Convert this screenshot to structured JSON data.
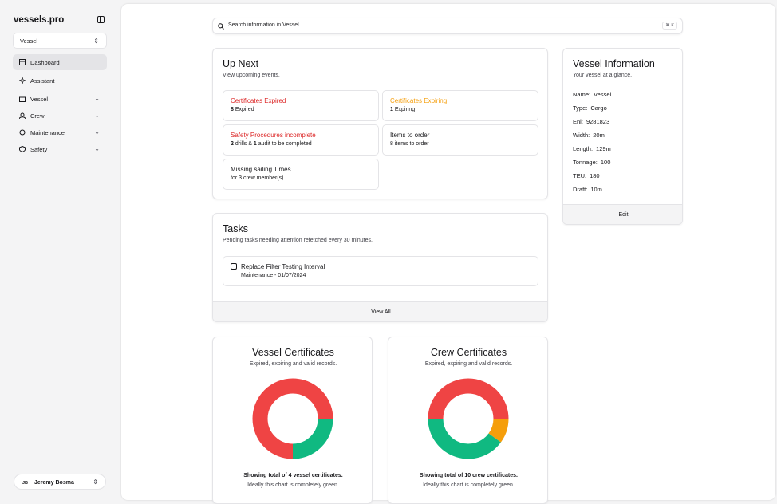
{
  "sidebar": {
    "brand": "vessels.pro",
    "selector": "Vessel",
    "nav": [
      "Dashboard",
      "Assistant",
      "Vessel",
      "Crew",
      "Maintenance",
      "Safety"
    ],
    "user": {
      "initials": "JB",
      "name": "Jeremy Bosma"
    }
  },
  "search": {
    "placeholder": "Search information in Vessel...",
    "shortcut": "⌘ K"
  },
  "up_next": {
    "title": "Up Next",
    "subtitle": "View upcoming events.",
    "items": [
      {
        "title": "Certificates Expired",
        "color": "#dc2626",
        "detail": [
          "8",
          "Expired"
        ]
      },
      {
        "title": "Certificates Expiring",
        "color": "#f59e0b",
        "detail": [
          "1",
          "Expiring"
        ]
      },
      {
        "title": "Safety Procedures incomplete",
        "color": "#dc2626",
        "detail": [
          "2",
          "drills &",
          "1",
          "audit to be completed"
        ]
      },
      {
        "title": "Items to order",
        "color": "#18181b",
        "detail": [
          "8 items to order"
        ]
      },
      {
        "title": "Missing sailing Times",
        "color": "#18181b",
        "detail": [
          "for 3 crew member(s)"
        ]
      }
    ]
  },
  "tasks": {
    "title": "Tasks",
    "subtitle": "Pending tasks needing attention refetched every 30 minutes.",
    "items": [
      {
        "title": "Replace Filter Testing Interval",
        "meta": "Maintenance - 01/07/2024"
      }
    ],
    "action": "View All"
  },
  "vessel_info": {
    "title": "Vessel Information",
    "subtitle": "Your vessel at a glance.",
    "fields": [
      {
        "label": "Name:",
        "value": "Vessel"
      },
      {
        "label": "Type:",
        "value": "Cargo"
      },
      {
        "label": "Eni:",
        "value": "9281823"
      },
      {
        "label": "Width:",
        "value": "20m"
      },
      {
        "label": "Length:",
        "value": "129m"
      },
      {
        "label": "Tonnage:",
        "value": "100"
      },
      {
        "label": "TEU:",
        "value": "180"
      },
      {
        "label": "Draft:",
        "value": "10m"
      }
    ],
    "action": "Edit"
  },
  "charts": [
    {
      "type": "donut",
      "title": "Vessel Certificates",
      "subtitle": "Expired, expiring and valid records.",
      "values": [
        0,
        1,
        3
      ],
      "colors": [
        "#f59e0b",
        "#10b981",
        "#ef4444"
      ],
      "caption": "Showing total of 4 vessel certificates.",
      "note": "Ideally this chart is completely green."
    },
    {
      "type": "donut",
      "title": "Crew Certificates",
      "subtitle": "Expired, expiring and valid records.",
      "values": [
        1,
        4,
        5
      ],
      "colors": [
        "#f59e0b",
        "#10b981",
        "#ef4444"
      ],
      "caption": "Showing total of 10 crew certificates.",
      "note": "Ideally this chart is completely green."
    }
  ]
}
